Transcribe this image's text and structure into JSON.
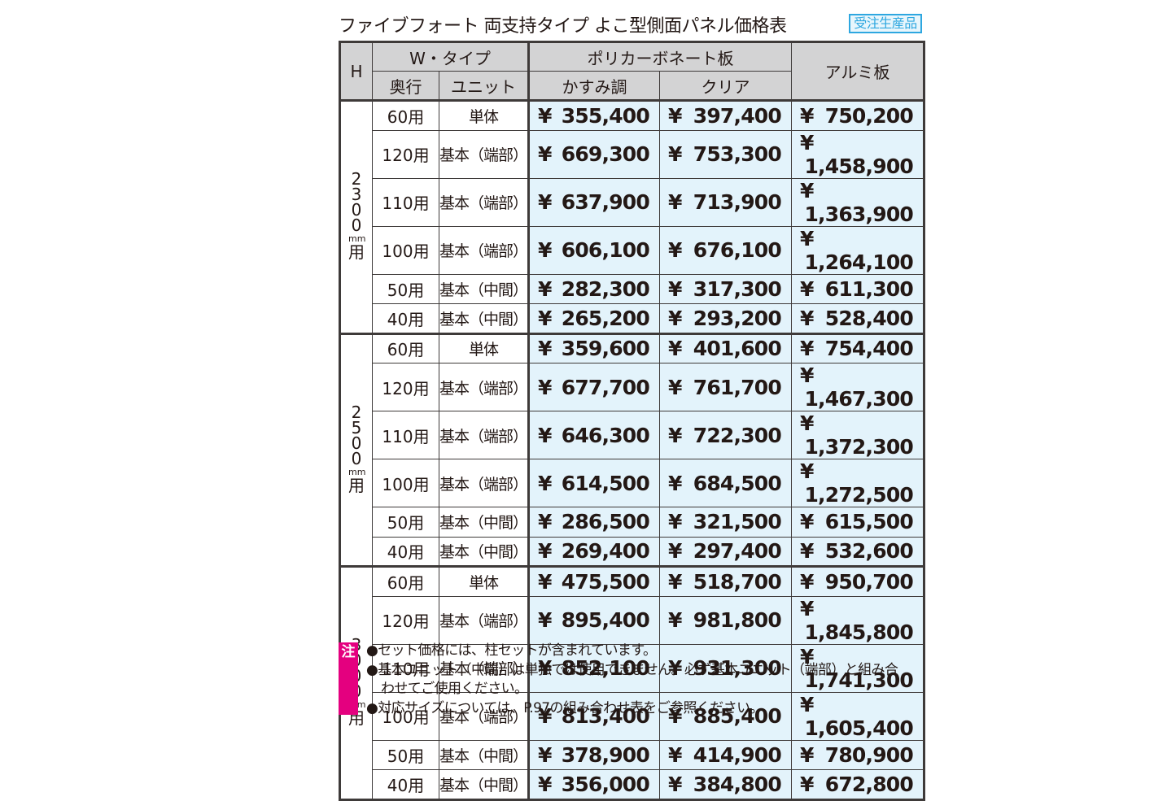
{
  "header": {
    "title": "ファイブフォート 両支持タイプ よこ型側面パネル価格表",
    "badge": "受注生産品"
  },
  "colors": {
    "badge": "#2ea7e0",
    "header_bg": "#d3d3d4",
    "price_bg": "#e3f3fb",
    "note_flag": "#e4007f",
    "border": "#3e3a39"
  },
  "table": {
    "headers": {
      "h": "H",
      "w_type": "W・タイプ",
      "depth": "奥行",
      "unit": "ユニット",
      "polycarbonate": "ポリカーボネート板",
      "kasumi": "かすみ調",
      "clear": "クリア",
      "aluminum": "アルミ板"
    },
    "currency": "¥",
    "groups": [
      {
        "height_digits": [
          "2",
          "3",
          "0",
          "0"
        ],
        "height_unit": "mm",
        "height_suffix": "用",
        "rows": [
          {
            "depth": "60用",
            "unit": "単体",
            "kasumi": "355,400",
            "clear": "397,400",
            "aluminum": "750,200"
          },
          {
            "depth": "120用",
            "unit": "基本（端部）",
            "kasumi": "669,300",
            "clear": "753,300",
            "aluminum": "1,458,900"
          },
          {
            "depth": "110用",
            "unit": "基本（端部）",
            "kasumi": "637,900",
            "clear": "713,900",
            "aluminum": "1,363,900"
          },
          {
            "depth": "100用",
            "unit": "基本（端部）",
            "kasumi": "606,100",
            "clear": "676,100",
            "aluminum": "1,264,100"
          },
          {
            "depth": "50用",
            "unit": "基本（中間）",
            "kasumi": "282,300",
            "clear": "317,300",
            "aluminum": "611,300"
          },
          {
            "depth": "40用",
            "unit": "基本（中間）",
            "kasumi": "265,200",
            "clear": "293,200",
            "aluminum": "528,400"
          }
        ]
      },
      {
        "height_digits": [
          "2",
          "5",
          "0",
          "0"
        ],
        "height_unit": "mm",
        "height_suffix": "用",
        "rows": [
          {
            "depth": "60用",
            "unit": "単体",
            "kasumi": "359,600",
            "clear": "401,600",
            "aluminum": "754,400"
          },
          {
            "depth": "120用",
            "unit": "基本（端部）",
            "kasumi": "677,700",
            "clear": "761,700",
            "aluminum": "1,467,300"
          },
          {
            "depth": "110用",
            "unit": "基本（端部）",
            "kasumi": "646,300",
            "clear": "722,300",
            "aluminum": "1,372,300"
          },
          {
            "depth": "100用",
            "unit": "基本（端部）",
            "kasumi": "614,500",
            "clear": "684,500",
            "aluminum": "1,272,500"
          },
          {
            "depth": "50用",
            "unit": "基本（中間）",
            "kasumi": "286,500",
            "clear": "321,500",
            "aluminum": "615,500"
          },
          {
            "depth": "40用",
            "unit": "基本（中間）",
            "kasumi": "269,400",
            "clear": "297,400",
            "aluminum": "532,600"
          }
        ]
      },
      {
        "height_digits": [
          "3",
          "0",
          "0",
          "0"
        ],
        "height_unit": "mm",
        "height_suffix": "用",
        "rows": [
          {
            "depth": "60用",
            "unit": "単体",
            "kasumi": "475,500",
            "clear": "518,700",
            "aluminum": "950,700"
          },
          {
            "depth": "120用",
            "unit": "基本（端部）",
            "kasumi": "895,400",
            "clear": "981,800",
            "aluminum": "1,845,800"
          },
          {
            "depth": "110用",
            "unit": "基本（端部）",
            "kasumi": "852,100",
            "clear": "931,300",
            "aluminum": "1,741,300"
          },
          {
            "depth": "100用",
            "unit": "基本（端部）",
            "kasumi": "813,400",
            "clear": "885,400",
            "aluminum": "1,605,400"
          },
          {
            "depth": "50用",
            "unit": "基本（中間）",
            "kasumi": "378,900",
            "clear": "414,900",
            "aluminum": "780,900"
          },
          {
            "depth": "40用",
            "unit": "基本（中間）",
            "kasumi": "356,000",
            "clear": "384,800",
            "aluminum": "672,800"
          }
        ]
      }
    ]
  },
  "notes": {
    "flag": "注",
    "lines": [
      "●セット価格には、柱セットが含まれています。",
      "●基本ユニット（中間）は単独では使用できません。必ず基本ユニット（端部）と組み合",
      "わせてご使用ください。",
      "●対応サイズについては、P.97の組み合わせ表をご参照ください。"
    ]
  }
}
